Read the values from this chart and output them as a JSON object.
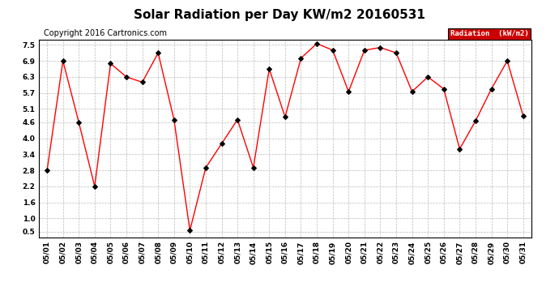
{
  "title": "Solar Radiation per Day KW/m2 20160531",
  "copyright": "Copyright 2016 Cartronics.com",
  "legend_label": "Radiation  (kW/m2)",
  "dates": [
    "05/01",
    "05/02",
    "05/03",
    "05/04",
    "05/05",
    "05/06",
    "05/07",
    "05/08",
    "05/09",
    "05/10",
    "05/11",
    "05/12",
    "05/13",
    "05/14",
    "05/15",
    "05/16",
    "05/17",
    "05/18",
    "05/19",
    "05/20",
    "05/21",
    "05/22",
    "05/23",
    "05/24",
    "05/25",
    "05/26",
    "05/27",
    "05/28",
    "05/29",
    "05/30",
    "05/31"
  ],
  "values": [
    2.8,
    6.9,
    4.6,
    2.2,
    6.8,
    6.3,
    6.1,
    7.2,
    4.7,
    0.55,
    2.9,
    3.8,
    4.7,
    2.9,
    6.6,
    4.8,
    7.0,
    7.55,
    7.3,
    5.75,
    7.3,
    7.4,
    7.2,
    5.75,
    6.3,
    5.85,
    3.6,
    4.65,
    5.85,
    6.9,
    4.85
  ],
  "yticks": [
    0.5,
    1.0,
    1.6,
    2.2,
    2.8,
    3.4,
    4.0,
    4.6,
    5.1,
    5.7,
    6.3,
    6.9,
    7.5
  ],
  "ylim": [
    0.3,
    7.7
  ],
  "line_color": "red",
  "marker_color": "black",
  "bg_color": "#ffffff",
  "grid_color": "#bbbbbb",
  "legend_bg": "#cc0000",
  "legend_text_color": "#ffffff",
  "title_fontsize": 11,
  "copyright_fontsize": 7,
  "tick_fontsize": 6.5,
  "border_color": "#000000"
}
